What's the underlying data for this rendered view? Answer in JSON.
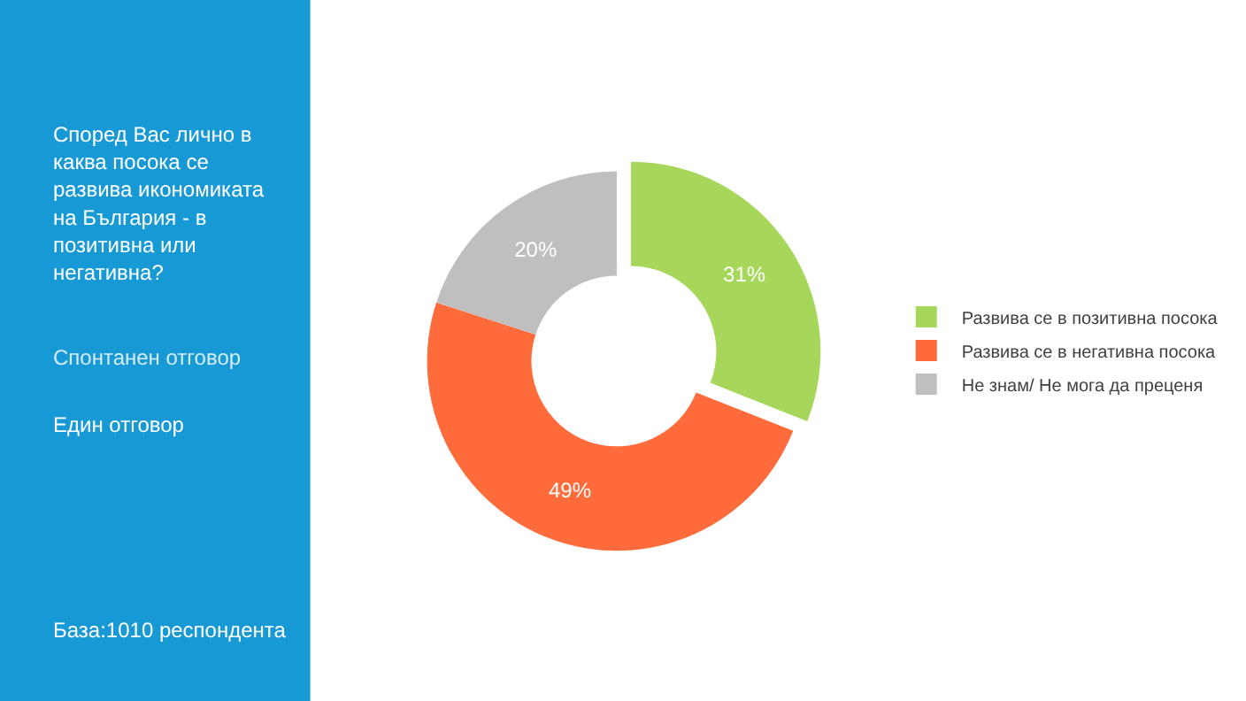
{
  "chart_data": {
    "type": "donut",
    "title": "Според Вас лично в каква посока се развива икономиката на България - в позитивна или негативна?",
    "subtitle": "Спонтанен отговор",
    "categories": [
      "Развива се в позитивна посока",
      "Развива се в негативна посока",
      "Не знам/ Не мога да преценя"
    ],
    "values": [
      31,
      49,
      20
    ],
    "colors": [
      "#a6d75b",
      "#ff6b3a",
      "#bfbfbf"
    ],
    "value_labels": [
      "31%",
      "49%",
      "20%"
    ],
    "legend": "right",
    "annotations": [
      "Един отговор",
      "База:1010 респондента"
    ]
  }
}
